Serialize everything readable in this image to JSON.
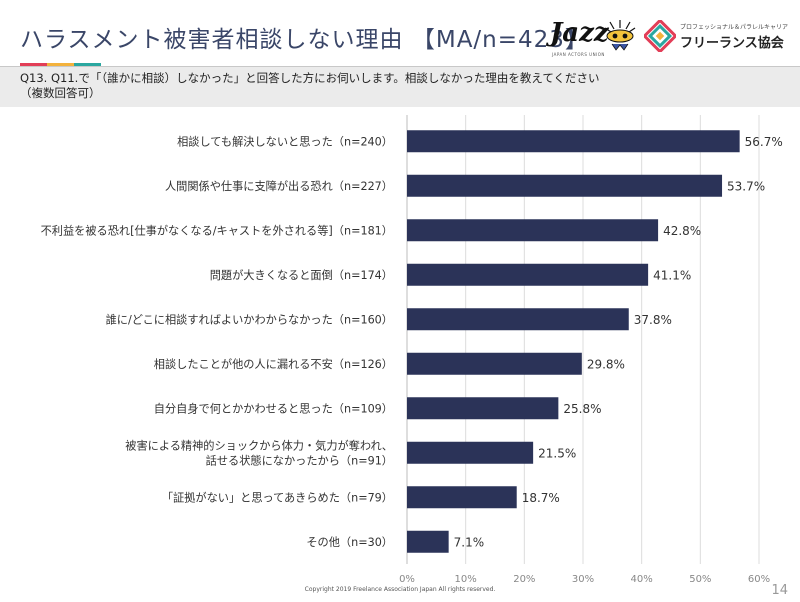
{
  "title": "ハラスメント被害者相談しない理由 【MA/n=423】",
  "question": "Q13. Q11.で「（誰かに相談）しなかった」と回答した方にお伺いします。相談しなかった理由を教えてください\n（複数回答可）",
  "logos": {
    "jazz": "Jazz",
    "jazz_sub": "JAPAN ACTORS UNION",
    "fa_small": "プロフェッショナル＆パラレルキャリア",
    "fa_big": "フリーランス協会"
  },
  "colors": {
    "bar": "#2b3358",
    "title": "#3a4668",
    "stripe": [
      "#e23e57",
      "#f3b23c",
      "#2aa7a0"
    ]
  },
  "footer": "Copyright 2019 Freelance Association Japan  All rights reserved.",
  "page_number": "14",
  "chart_data": {
    "type": "bar",
    "orientation": "horizontal",
    "categories": [
      "相談しても解決しないと思った（n=240）",
      "人間関係や仕事に支障が出る恐れ（n=227）",
      "不利益を被る恐れ[仕事がなくなる/キャストを外される等]（n=181）",
      "問題が大きくなると面倒（n=174）",
      "誰に/どこに相談すればよいかわからなかった（n=160）",
      "相談したことが他の人に漏れる不安（n=126）",
      "自分自身で何とかかわせると思った（n=109）",
      "被害による精神的ショックから体力・気力が奪われ、\n話せる状態になかったから（n=91）",
      "「証拠がない」と思ってあきらめた（n=79）",
      "その他（n=30）"
    ],
    "values": [
      56.7,
      53.7,
      42.8,
      41.1,
      37.8,
      29.8,
      25.8,
      21.5,
      18.7,
      7.1
    ],
    "value_labels": [
      "56.7%",
      "53.7%",
      "42.8%",
      "41.1%",
      "37.8%",
      "29.8%",
      "25.8%",
      "21.5%",
      "18.7%",
      "7.1%"
    ],
    "xlim": [
      0,
      60
    ],
    "xticks": [
      0,
      10,
      20,
      30,
      40,
      50,
      60
    ],
    "xtick_labels": [
      "0%",
      "10%",
      "20%",
      "30%",
      "40%",
      "50%",
      "60%"
    ],
    "grid": true
  }
}
